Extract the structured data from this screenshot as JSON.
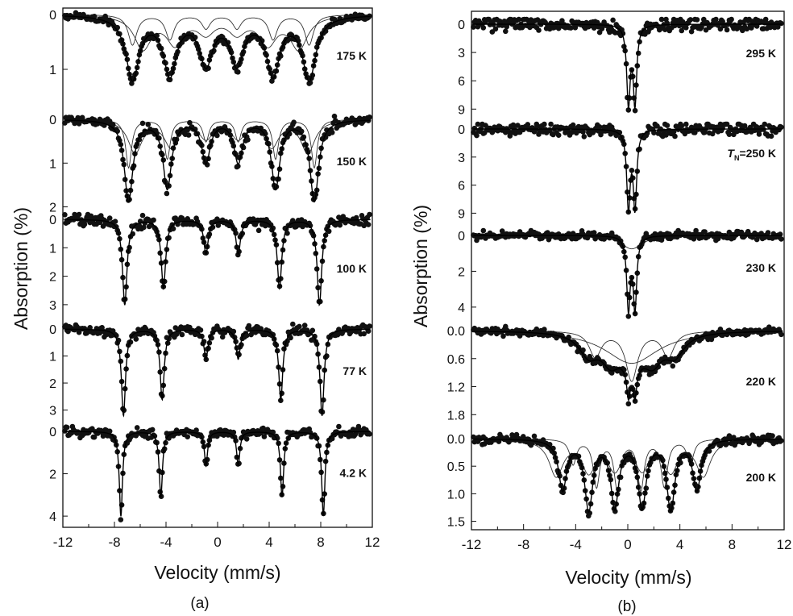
{
  "chart_data": [
    {
      "type": "scatter",
      "panel_label": "(a)",
      "xlabel": "Velocity (mm/s)",
      "ylabel": "Absorption (%)",
      "xlim": [
        -12,
        12
      ],
      "xticks": [
        "-12",
        "-8",
        "-4",
        "0",
        "4",
        "8",
        "12"
      ],
      "ylim_note": "",
      "subplots": [
        {
          "label": "175 K",
          "ylim": [
            0,
            1.5
          ],
          "yticks": [
            0,
            1
          ],
          "lines": [
            -6.6,
            -3.7,
            -0.9,
            1.5,
            4.3,
            7.1
          ],
          "depths": [
            1.15,
            1.05,
            0.85,
            0.85,
            1.05,
            1.15
          ],
          "width": 1.25,
          "noise": 0.08,
          "components": [
            {
              "lines": [
                -6.6,
                -3.7,
                -0.9,
                1.5,
                4.3,
                7.1
              ],
              "depths": [
                0.55,
                0.45,
                0.25,
                0.25,
                0.45,
                0.55
              ],
              "width": 0.8
            },
            {
              "lines": [
                -5.8,
                -3.3,
                -0.9,
                1.5,
                3.9,
                6.3
              ],
              "depths": [
                0.6,
                0.5,
                0.3,
                0.3,
                0.5,
                0.6
              ],
              "width": 1.6
            }
          ]
        },
        {
          "label": "150 K",
          "ylim": [
            0,
            2.1
          ],
          "yticks": [
            0,
            1,
            2
          ],
          "lines": [
            -6.9,
            -3.9,
            -0.9,
            1.6,
            4.5,
            7.5
          ],
          "depths": [
            1.85,
            1.55,
            0.95,
            0.95,
            1.55,
            1.85
          ],
          "width": 0.8,
          "noise": 0.1,
          "components": [
            {
              "lines": [
                -6.9,
                -3.9,
                -0.9,
                1.6,
                4.5,
                7.5
              ],
              "depths": [
                1.1,
                0.9,
                0.5,
                0.5,
                0.9,
                1.1
              ],
              "width": 0.55
            },
            {
              "lines": [
                -6.4,
                -3.6,
                -0.9,
                1.6,
                4.2,
                7.0
              ],
              "depths": [
                0.75,
                0.6,
                0.4,
                0.4,
                0.6,
                0.75
              ],
              "width": 1.3
            }
          ]
        },
        {
          "label": "100 K",
          "ylim": [
            0,
            3.4
          ],
          "yticks": [
            0,
            1,
            2,
            3
          ],
          "lines": [
            -7.2,
            -4.2,
            -0.9,
            1.6,
            4.8,
            7.9
          ],
          "depths": [
            3.0,
            2.4,
            1.2,
            1.2,
            2.4,
            3.0
          ],
          "width": 0.42,
          "noise": 0.1,
          "components": []
        },
        {
          "label": "77 K",
          "ylim": [
            0,
            3.4
          ],
          "yticks": [
            0,
            1,
            2,
            3
          ],
          "lines": [
            -7.3,
            -4.3,
            -0.9,
            1.6,
            4.9,
            8.1
          ],
          "depths": [
            3.2,
            2.6,
            1.1,
            1.1,
            2.6,
            3.2
          ],
          "width": 0.38,
          "noise": 0.1,
          "components": []
        },
        {
          "label": "4.2 K",
          "ylim": [
            0,
            4.3
          ],
          "yticks": [
            0,
            2,
            4
          ],
          "lines": [
            -7.5,
            -4.4,
            -0.9,
            1.6,
            5.0,
            8.2
          ],
          "depths": [
            4.0,
            3.1,
            1.6,
            1.6,
            3.1,
            4.0
          ],
          "width": 0.3,
          "noise": 0.1,
          "components": []
        }
      ]
    },
    {
      "type": "scatter",
      "panel_label": "(b)",
      "xlabel": "Velocity (mm/s)",
      "ylabel": "Absorption (%)",
      "xlim": [
        -12,
        12
      ],
      "xticks": [
        "-12",
        "-8",
        "-4",
        "0",
        "4",
        "8",
        "12"
      ],
      "subplots": [
        {
          "label": "295 K",
          "label_sub": "",
          "ylim": [
            0,
            10
          ],
          "yticks": [
            "0",
            "3",
            "6",
            "9"
          ],
          "lines": [
            0.05,
            0.55
          ],
          "depths": [
            8.2,
            8.2
          ],
          "width": 0.32,
          "noise": 0.12,
          "components": []
        },
        {
          "label": "=250 K",
          "label_sub": "N",
          "label_prefix": "T",
          "ylim": [
            0,
            10
          ],
          "yticks": [
            "0",
            "3",
            "6",
            "9"
          ],
          "lines": [
            0.05,
            0.55
          ],
          "depths": [
            8.2,
            8.2
          ],
          "width": 0.32,
          "noise": 0.12,
          "components": []
        },
        {
          "label": "230 K",
          "label_sub": "",
          "ylim": [
            0,
            4.5
          ],
          "yticks": [
            "0",
            "2",
            "4"
          ],
          "lines": [
            0.05,
            0.55
          ],
          "depths": [
            4.0,
            4.0
          ],
          "width": 0.32,
          "noise": 0.08,
          "components": [
            {
              "lines": [
                0.3
              ],
              "depths": [
                0.75
              ],
              "width": 2.0
            }
          ]
        },
        {
          "label": "220 K",
          "label_sub": "",
          "ylim": [
            0,
            1.95
          ],
          "yticks": [
            "0.0",
            "0.6",
            "1.2",
            "1.8"
          ],
          "lines": [
            -3.0,
            -1.3,
            0.3,
            1.9,
            3.6
          ],
          "depths": [
            0.45,
            0.55,
            0.6,
            0.55,
            0.45
          ],
          "width": 1.8,
          "noise": 0.07,
          "extra_lines": [
            0.05,
            0.55
          ],
          "extra_depths": [
            0.55,
            0.55
          ],
          "extra_width": 0.3,
          "components": [
            {
              "lines": [
                -2.5,
                0.3,
                3.1
              ],
              "depths": [
                0.55,
                1.05,
                0.55
              ],
              "width": 1.1
            },
            {
              "lines": [
                0.3
              ],
              "depths": [
                0.7
              ],
              "width": 5.0
            }
          ]
        },
        {
          "label": "200 K",
          "label_sub": "",
          "ylim": [
            0,
            1.55
          ],
          "yticks": [
            "0.0",
            "0.5",
            "1.0",
            "1.5"
          ],
          "lines": [
            -5.0,
            -3.0,
            -1.0,
            1.1,
            3.3,
            5.3
          ],
          "depths": [
            0.9,
            1.25,
            1.2,
            1.2,
            1.25,
            0.9
          ],
          "width": 0.75,
          "noise": 0.08,
          "components": [
            {
              "lines": [
                -5.5,
                -3.0,
                -1.0,
                1.1,
                3.3,
                5.8
              ],
              "depths": [
                0.65,
                0.55,
                0.5,
                0.5,
                0.55,
                0.65
              ],
              "width": 1.3
            },
            {
              "lines": [
                -4.2,
                -2.4,
                -0.8,
                1.0,
                2.8,
                4.8
              ],
              "depths": [
                0.45,
                0.85,
                0.9,
                0.9,
                0.85,
                0.45
              ],
              "width": 0.6
            }
          ]
        }
      ]
    }
  ]
}
